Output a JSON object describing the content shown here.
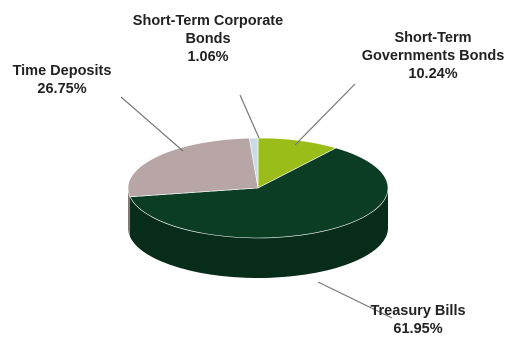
{
  "chart_data": {
    "type": "pie",
    "style": "3d",
    "title": "",
    "slices": [
      {
        "label_lines": [
          "Treasury Bills"
        ],
        "value": 61.95,
        "value_label": "61.95%",
        "color": "#0b3d24"
      },
      {
        "label_lines": [
          "Time Deposits"
        ],
        "value": 26.75,
        "value_label": "26.75%",
        "color": "#b8a6a6"
      },
      {
        "label_lines": [
          "Short-Term Corporate",
          "Bonds"
        ],
        "value": 1.06,
        "value_label": "1.06%",
        "color": "#c9dbe6"
      },
      {
        "label_lines": [
          "Short-Term",
          "Governments Bonds"
        ],
        "value": 10.24,
        "value_label": "10.24%",
        "color": "#9bbd19"
      }
    ],
    "legend": "none"
  }
}
